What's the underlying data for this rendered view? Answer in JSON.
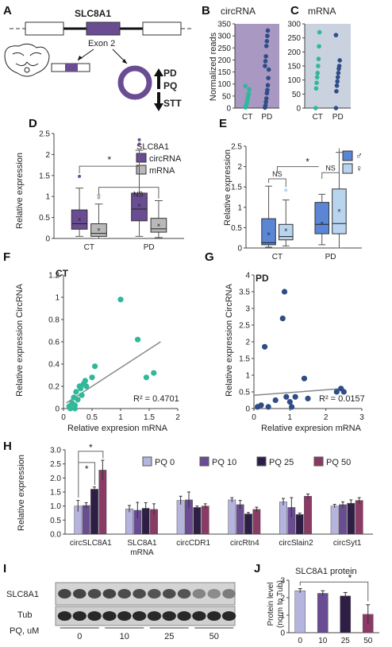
{
  "panels": {
    "A": {
      "letter": "A",
      "gene": "SLC8A1",
      "exon": "Exon 2",
      "arrows": {
        "up1": "PD",
        "up2": "PQ",
        "down": "STT"
      }
    },
    "B": {
      "letter": "B",
      "title": "circRNA",
      "ylabel": "Normalized reads",
      "colors": {
        "bg": "#a898c2",
        "CT": "#2fb89a",
        "PD": "#2f4c86"
      }
    },
    "C": {
      "letter": "C",
      "title": "mRNA",
      "colors": {
        "bg": "#c9d2de",
        "CT": "#2fb89a",
        "PD": "#2f4c86"
      }
    },
    "D": {
      "letter": "D",
      "ylabel": "Relative expression",
      "legend_title": "SLC8A1",
      "sig": "*",
      "ns": "NS",
      "colors": {
        "circRNA": "#6a4c93",
        "mRNA": "#b9b9b9"
      }
    },
    "E": {
      "letter": "E",
      "ylabel": "Relative expression",
      "sig": "*",
      "ns1": "NS",
      "ns2": "NS",
      "colors": {
        "male": "#5b86d6",
        "female": "#b8d4ef"
      }
    },
    "F": {
      "letter": "F",
      "group": "CT",
      "xlabel": "Relative expresion mRNA",
      "ylabel": "Relative expression CircRNA",
      "r2": "R² = 0.4701",
      "color": "#2fb89a"
    },
    "G": {
      "letter": "G",
      "group": "PD",
      "xlabel": "Relative expresion mRNA",
      "ylabel": "Relative expression CircRNA",
      "r2": "R² = 0.0157",
      "color": "#2f4c86"
    },
    "H": {
      "letter": "H",
      "ylabel": "Relative expression",
      "sig1": "*",
      "sig2": "*",
      "colors": [
        "#b4b4de",
        "#6a4c93",
        "#2e1e45",
        "#8a3a64"
      ]
    },
    "I": {
      "letter": "I",
      "row1": "SLC8A1",
      "row2": "Tub",
      "pq_label": "PQ, uM",
      "lanes": [
        "0",
        "10",
        "25",
        "50"
      ]
    },
    "J": {
      "letter": "J",
      "title": "SLC8A1 protein",
      "ylabel1": "Protein level",
      "ylabel2": "(norm to Tub)",
      "sig": "*"
    }
  },
  "chart_data": [
    {
      "id": "B",
      "type": "scatter",
      "title": "circRNA",
      "ylabel": "Normalized reads",
      "ylim": [
        0,
        350
      ],
      "yticks": [
        0,
        50,
        100,
        150,
        200,
        250,
        300,
        350
      ],
      "categories": [
        "CT",
        "PD"
      ],
      "series": [
        {
          "category": "CT",
          "values": [
            3,
            8,
            15,
            20,
            30,
            40,
            52,
            60,
            78,
            92
          ]
        },
        {
          "category": "PD",
          "values": [
            2,
            10,
            25,
            40,
            62,
            75,
            95,
            125,
            160,
            175,
            195,
            215,
            258,
            278,
            300,
            322
          ]
        }
      ]
    },
    {
      "id": "C",
      "type": "scatter",
      "title": "mRNA",
      "ylim": [
        0,
        300
      ],
      "yticks": [
        0,
        50,
        100,
        150,
        200,
        250,
        300
      ],
      "categories": [
        "CT",
        "PD"
      ],
      "series": [
        {
          "category": "CT",
          "values": [
            0,
            70,
            90,
            110,
            125,
            150,
            175,
            220,
            270
          ]
        },
        {
          "category": "PD",
          "values": [
            0,
            60,
            80,
            95,
            110,
            125,
            140,
            150,
            170,
            260
          ]
        }
      ]
    },
    {
      "id": "D",
      "type": "box",
      "ylabel": "Relative expression",
      "ylim": [
        0,
        2.5
      ],
      "yticks": [
        0,
        0.5,
        1,
        1.5,
        2,
        2.5
      ],
      "categories": [
        "CT",
        "PD"
      ],
      "series": [
        {
          "name": "circRNA",
          "boxes": [
            {
              "min": 0.05,
              "q1": 0.22,
              "median": 0.35,
              "q3": 0.68,
              "max": 1.2,
              "mean": 0.45,
              "outliers": [
                1.48
              ]
            },
            {
              "min": 0.05,
              "q1": 0.42,
              "median": 0.7,
              "q3": 1.08,
              "max": 2.1,
              "mean": 0.8,
              "outliers": [
                2.25,
                2.35
              ]
            }
          ]
        },
        {
          "name": "mRNA",
          "boxes": [
            {
              "min": 0.0,
              "q1": 0.05,
              "median": 0.12,
              "q3": 0.35,
              "max": 0.82,
              "mean": 0.22,
              "outliers": [
                0.97,
                1.03
              ]
            },
            {
              "min": 0.02,
              "q1": 0.15,
              "median": 0.23,
              "q3": 0.48,
              "max": 0.9,
              "mean": 0.32,
              "outliers": []
            }
          ]
        }
      ]
    },
    {
      "id": "E",
      "type": "box",
      "ylabel": "Relative expression",
      "ylim": [
        0,
        2.5
      ],
      "yticks": [
        0,
        0.5,
        1,
        1.5,
        2,
        2.5
      ],
      "categories": [
        "CT",
        "PD"
      ],
      "series": [
        {
          "name": "♂",
          "boxes": [
            {
              "min": 0.02,
              "q1": 0.08,
              "median": 0.13,
              "q3": 0.72,
              "max": 1.52,
              "mean": 0.35,
              "outliers": []
            },
            {
              "min": 0.08,
              "q1": 0.35,
              "median": 0.58,
              "q3": 1.12,
              "max": 1.32,
              "mean": 0.62,
              "outliers": []
            }
          ]
        },
        {
          "name": "♀",
          "boxes": [
            {
              "min": 0.05,
              "q1": 0.2,
              "median": 0.28,
              "q3": 0.58,
              "max": 1.18,
              "mean": 0.45,
              "outliers": [
                1.42
              ]
            },
            {
              "min": 0.0,
              "q1": 0.35,
              "median": 0.6,
              "q3": 1.45,
              "max": 2.35,
              "mean": 0.93,
              "outliers": []
            }
          ]
        }
      ]
    },
    {
      "id": "F",
      "type": "scatter",
      "xlabel": "Relative expresion mRNA",
      "ylabel": "Relative expression CircRNA",
      "xlim": [
        0,
        2
      ],
      "ylim": [
        0,
        1.2
      ],
      "xticks": [
        0,
        0.5,
        1,
        1.5,
        2
      ],
      "yticks": [
        0,
        0.2,
        0.4,
        0.6,
        0.8,
        1,
        1.2
      ],
      "points": [
        [
          0.1,
          0.02
        ],
        [
          0.15,
          0.05
        ],
        [
          0.18,
          0.1
        ],
        [
          0.2,
          0.03
        ],
        [
          0.22,
          0.15
        ],
        [
          0.25,
          0.08
        ],
        [
          0.28,
          0.2
        ],
        [
          0.3,
          0.18
        ],
        [
          0.32,
          0.12
        ],
        [
          0.35,
          0.22
        ],
        [
          0.38,
          0.25
        ],
        [
          0.4,
          0.2
        ],
        [
          0.5,
          0.28
        ],
        [
          0.55,
          0.38
        ],
        [
          0.2,
          0.0
        ],
        [
          0.12,
          0.0
        ],
        [
          1.0,
          0.98
        ],
        [
          1.3,
          0.62
        ],
        [
          1.45,
          0.28
        ],
        [
          1.58,
          0.32
        ]
      ],
      "trend": [
        [
          0.05,
          0.05
        ],
        [
          1.7,
          0.6
        ]
      ],
      "r2": 0.4701
    },
    {
      "id": "G",
      "type": "scatter",
      "xlabel": "Relative expresion mRNA",
      "ylabel": "Relative expression CircRNA",
      "xlim": [
        0,
        3
      ],
      "ylim": [
        0,
        4
      ],
      "xticks": [
        0,
        1,
        2,
        3
      ],
      "yticks": [
        0,
        0.5,
        1,
        1.5,
        2,
        2.5,
        3,
        3.5,
        4
      ],
      "points": [
        [
          0.1,
          0.05
        ],
        [
          0.2,
          0.1
        ],
        [
          0.3,
          1.85
        ],
        [
          0.4,
          0.05
        ],
        [
          0.6,
          0.25
        ],
        [
          0.8,
          2.7
        ],
        [
          0.85,
          3.5
        ],
        [
          0.9,
          0.35
        ],
        [
          1.0,
          0.2
        ],
        [
          1.05,
          0.05
        ],
        [
          1.15,
          0.35
        ],
        [
          1.4,
          0.9
        ],
        [
          1.5,
          0.3
        ],
        [
          2.3,
          0.5
        ],
        [
          2.42,
          0.6
        ],
        [
          2.5,
          0.5
        ]
      ],
      "trend": [
        [
          0.0,
          0.4
        ],
        [
          2.5,
          0.6
        ]
      ],
      "r2": 0.0157
    },
    {
      "id": "H",
      "type": "bar",
      "ylabel": "Relative expression",
      "ylim": [
        0,
        3
      ],
      "yticks": [
        0,
        0.5,
        1,
        1.5,
        2,
        2.5,
        3
      ],
      "categories": [
        "circSLC8A1",
        "SLC8A1 mRNA",
        "circCDR1",
        "circRtn4",
        "circSlain2",
        "circSyt1"
      ],
      "series": [
        {
          "name": "PQ 0",
          "values": [
            1.0,
            0.9,
            1.2,
            1.22,
            1.15,
            1.0
          ],
          "errors": [
            0.2,
            0.12,
            0.15,
            0.08,
            0.12,
            0.06
          ]
        },
        {
          "name": "PQ 10",
          "values": [
            1.02,
            0.85,
            1.22,
            1.05,
            0.95,
            1.05
          ],
          "errors": [
            0.1,
            0.28,
            0.28,
            0.15,
            0.35,
            0.1
          ]
        },
        {
          "name": "PQ 25",
          "values": [
            1.6,
            0.92,
            0.95,
            0.72,
            0.7,
            1.1
          ],
          "errors": [
            0.08,
            0.2,
            0.05,
            0.05,
            0.05,
            0.12
          ]
        },
        {
          "name": "PQ 50",
          "values": [
            2.28,
            0.88,
            1.0,
            0.88,
            1.35,
            1.2
          ],
          "errors": [
            0.35,
            0.2,
            0.08,
            0.08,
            0.08,
            0.1
          ]
        }
      ]
    },
    {
      "id": "J",
      "type": "bar",
      "title": "SLC8A1 protein",
      "ylabel": "Protein level (norm to Tub)",
      "ylim": [
        0,
        3
      ],
      "yticks": [
        0,
        1,
        2,
        3
      ],
      "categories": [
        "0",
        "10",
        "25",
        "50"
      ],
      "values": [
        2.4,
        2.25,
        2.1,
        1.05
      ],
      "errors": [
        0.12,
        0.15,
        0.2,
        0.55
      ],
      "colors": [
        "#b4b4de",
        "#6a4c93",
        "#2e1e45",
        "#8a3a64"
      ]
    }
  ]
}
